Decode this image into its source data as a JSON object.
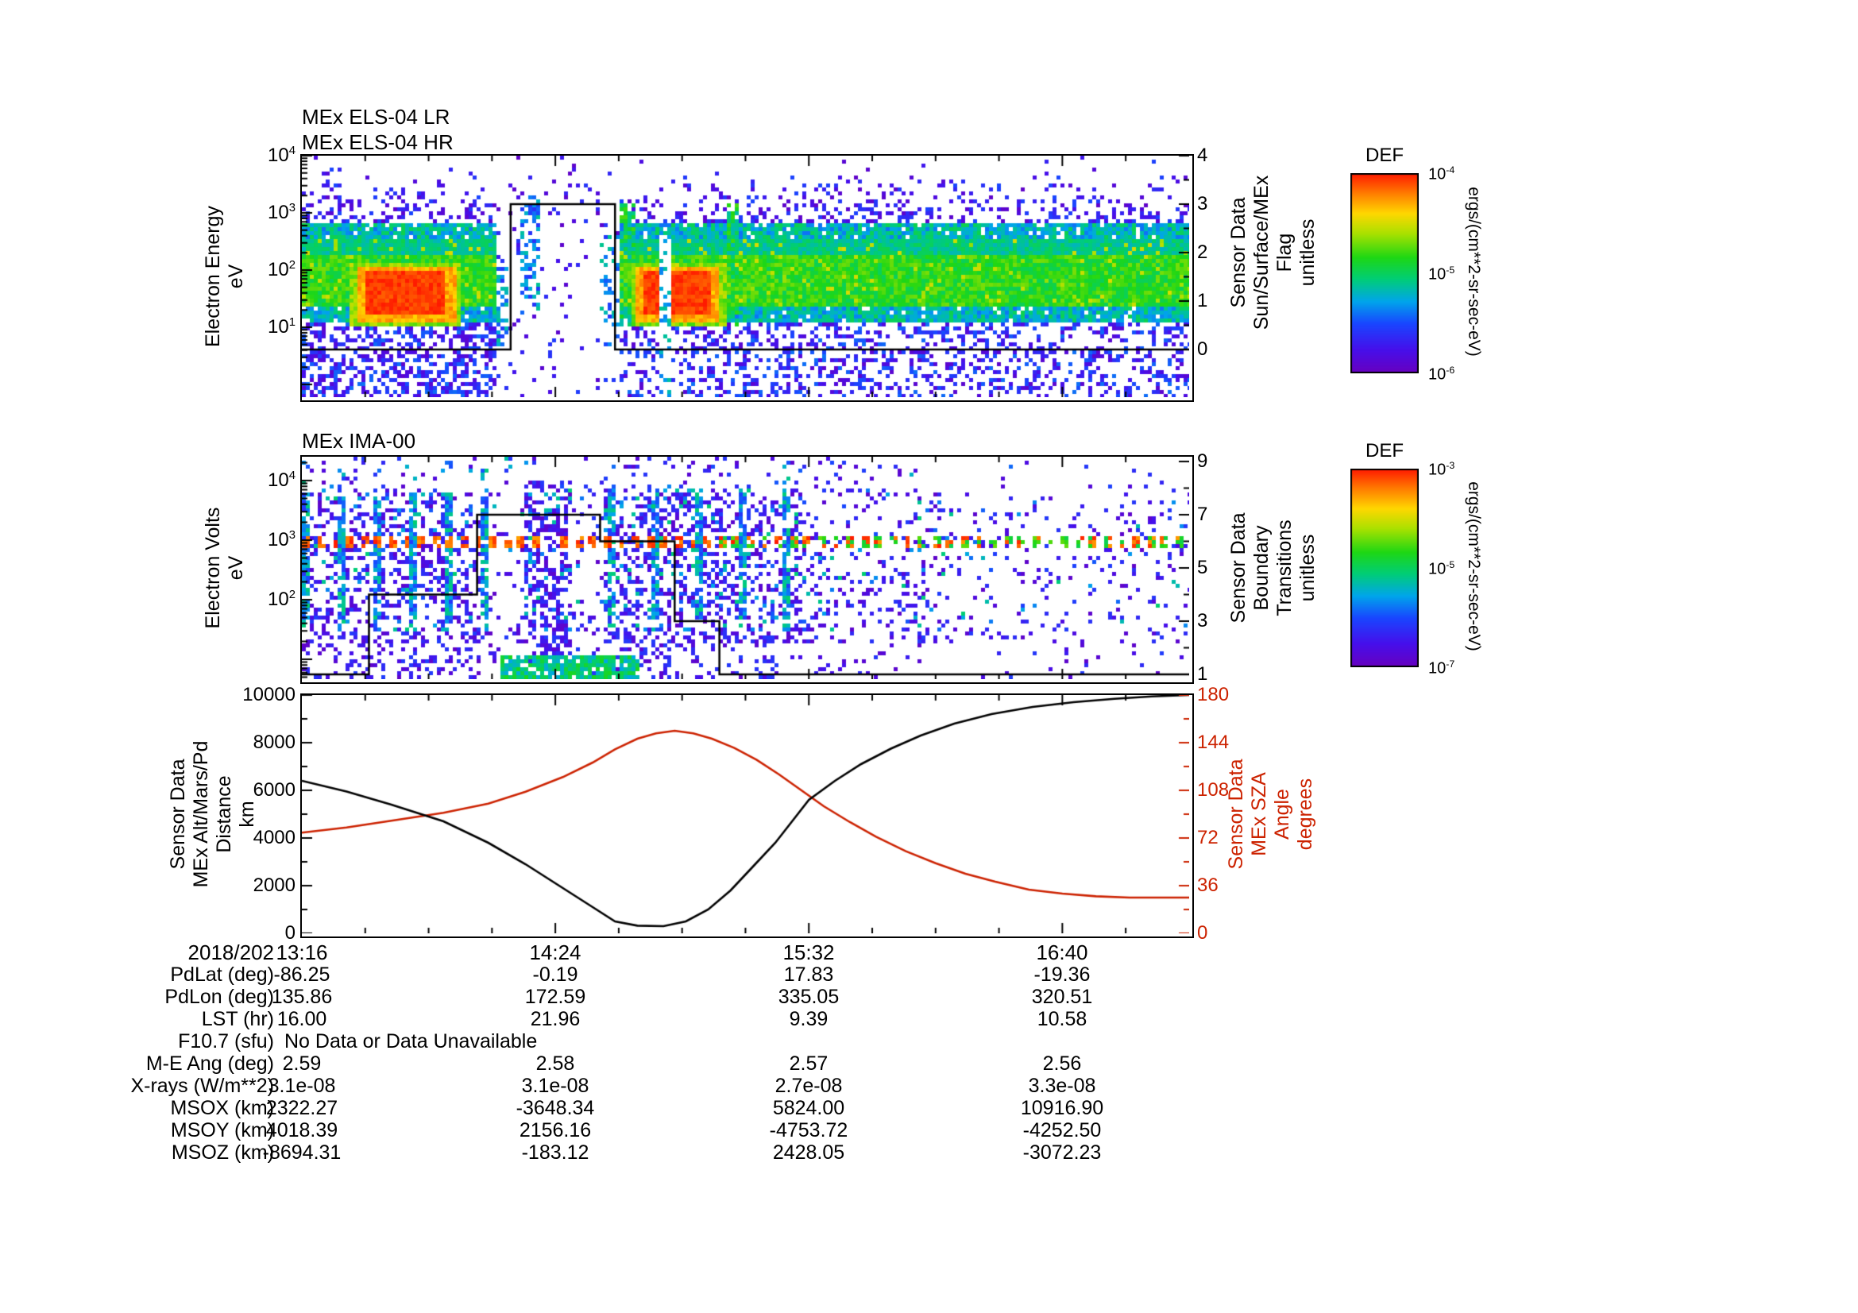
{
  "colors": {
    "red": "#cc2200",
    "black": "#000000"
  },
  "panels": {
    "els": {
      "title_lr": "MEx ELS-04 LR",
      "title_hr": "MEx ELS-04 HR",
      "ylabel_lines": [
        "Electron Energy",
        "eV"
      ],
      "ytick_exponents": [
        4,
        3,
        2,
        1
      ],
      "right_label_lines": [
        "Sensor Data",
        "Sun/Surface/MEx",
        "Flag",
        "unitless"
      ],
      "right_ticks": [
        "4",
        "3",
        "2",
        "1",
        "0"
      ]
    },
    "ima": {
      "title": "MEx IMA-00",
      "ylabel_lines": [
        "Electron Volts",
        "eV"
      ],
      "ytick_exponents": [
        4,
        3,
        2
      ],
      "right_label_lines": [
        "Sensor Data",
        "Boundary",
        "Transitions",
        "unitless"
      ],
      "right_ticks": [
        "9",
        "7",
        "5",
        "3",
        "1"
      ]
    },
    "bottom": {
      "ylabel_lines": [
        "Sensor Data",
        "MEx Alt/Mars/Pd",
        "Distance",
        "km"
      ],
      "yticks": [
        "10000",
        "8000",
        "6000",
        "4000",
        "2000",
        "0"
      ],
      "right_label_lines": [
        "Sensor Data",
        "MEx SZA",
        "Angle",
        "degrees"
      ],
      "right_ticks": [
        "180",
        "144",
        "108",
        "72",
        "36",
        "0"
      ]
    }
  },
  "colorbars": [
    {
      "title": "DEF",
      "unit": "ergs/(cm**2-sr-sec-eV)",
      "tick_exponents": [
        -4,
        -5,
        -6
      ]
    },
    {
      "title": "DEF",
      "unit": "ergs/(cm**2-sr-sec-eV)",
      "tick_exponents": [
        -3,
        -5,
        -7
      ]
    }
  ],
  "xaxis": {
    "date": "2018/202",
    "tick_labels": [
      "13:16",
      "14:24",
      "15:32",
      "16:40"
    ]
  },
  "table": {
    "rows": [
      {
        "label": "PdLat (deg)",
        "values": [
          "-86.25",
          "-0.19",
          "17.83",
          "-19.36"
        ]
      },
      {
        "label": "PdLon (deg)",
        "values": [
          "135.86",
          "172.59",
          "335.05",
          "320.51"
        ]
      },
      {
        "label": "LST (hr)",
        "values": [
          "16.00",
          "21.96",
          "9.39",
          "10.58"
        ]
      },
      {
        "label": "F10.7 (sfu)",
        "values": [],
        "note": "No Data or Data Unavailable"
      },
      {
        "label": "M-E Ang (deg)",
        "values": [
          "2.59",
          "2.58",
          "2.57",
          "2.56"
        ]
      },
      {
        "label": "X-rays (W/m**2)",
        "values": [
          "3.1e-08",
          "3.1e-08",
          "2.7e-08",
          "3.3e-08"
        ]
      },
      {
        "label": "MSOX (km)",
        "values": [
          "2322.27",
          "-3648.34",
          "5824.00",
          "10916.90"
        ]
      },
      {
        "label": "MSOY (km)",
        "values": [
          "4018.39",
          "2156.16",
          "-4753.72",
          "-4252.50"
        ]
      },
      {
        "label": "MSOZ (km)",
        "values": [
          "-8694.31",
          "-183.12",
          "2428.05",
          "-3072.23"
        ]
      }
    ]
  },
  "chart_data": [
    {
      "type": "heatmap",
      "title": "MEx ELS-04 LR / MEx ELS-04 HR electron energy spectrogram",
      "ylabel": "Electron Energy (eV)",
      "yscale": "log",
      "ylim": [
        6,
        10000
      ],
      "x_start": "13:16",
      "x_ticks": [
        "13:16",
        "14:24",
        "15:32",
        "16:40"
      ],
      "x_minutes_span": 238,
      "colorbar": {
        "title": "DEF",
        "units": "ergs/(cm**2-sr-sec-eV)",
        "min": "1e-6",
        "max": "1e-4"
      },
      "features": {
        "main_band_logE": [
          1.1,
          2.8
        ],
        "core_band_logE": [
          1.35,
          2.55
        ],
        "red_blob_tfrac": [
          [
            0.053,
            0.178
          ],
          [
            0.368,
            0.475
          ]
        ],
        "red_blob_logE": [
          1.05,
          2.15
        ],
        "data_gap_tfrac": [
          0.215,
          0.357
        ],
        "streak_tfrac": [
          [
            0.245,
            0.268
          ],
          [
            0.357,
            0.372
          ],
          [
            0.475,
            0.49
          ]
        ]
      }
    },
    {
      "type": "heatmap",
      "title": "MEx IMA-00 ion spectrogram",
      "ylabel": "Electron Volts (eV)",
      "yscale": "log",
      "ylim": [
        5,
        25000
      ],
      "x_minutes_span": 238,
      "colorbar": {
        "title": "DEF",
        "units": "ergs/(cm**2-sr-sec-eV)",
        "min": "1e-7",
        "max": "1e-3"
      },
      "features": {
        "dash_line_logV": 2.95,
        "dense_left_tfrac": [
          0,
          0.21
        ],
        "sparse_gap_tfrac": [
          0.21,
          0.34
        ],
        "dense_mid_tfrac": [
          0.34,
          0.56
        ],
        "bottom_streak_tfrac": [
          0.22,
          0.38
        ],
        "bottom_streak_logV": [
          0.7,
          1.05
        ]
      }
    },
    {
      "type": "line",
      "x_unit": "minutes from 13:16",
      "x_span": 238,
      "left_axis": {
        "label": "Sensor Data MEx Alt/Mars/Pd Distance (km)",
        "lim": [
          0,
          10000
        ]
      },
      "right_axis": {
        "label": "Sensor Data MEx SZA Angle (degrees)",
        "lim": [
          0,
          180
        ]
      },
      "series": [
        {
          "name": "altitude_km",
          "axis": "left",
          "color": "#000000",
          "points": [
            [
              0,
              6400
            ],
            [
              12,
              5950
            ],
            [
              24,
              5400
            ],
            [
              38,
              4700
            ],
            [
              50,
              3800
            ],
            [
              60,
              2900
            ],
            [
              70,
              1900
            ],
            [
              78,
              1100
            ],
            [
              84,
              500
            ],
            [
              90,
              320
            ],
            [
              97,
              300
            ],
            [
              103,
              500
            ],
            [
              109,
              1000
            ],
            [
              115,
              1800
            ],
            [
              121,
              2800
            ],
            [
              127,
              3800
            ],
            [
              132,
              4800
            ],
            [
              136,
              5600
            ],
            [
              143,
              6400
            ],
            [
              150,
              7100
            ],
            [
              158,
              7750
            ],
            [
              166,
              8300
            ],
            [
              175,
              8800
            ],
            [
              185,
              9200
            ],
            [
              196,
              9500
            ],
            [
              207,
              9700
            ],
            [
              218,
              9840
            ],
            [
              228,
              9940
            ],
            [
              238,
              10000
            ]
          ]
        },
        {
          "name": "sza_deg",
          "axis": "right",
          "color": "#cc2200",
          "points": [
            [
              0,
              76
            ],
            [
              12,
              80
            ],
            [
              24,
              85
            ],
            [
              38,
              91
            ],
            [
              50,
              98
            ],
            [
              60,
              107
            ],
            [
              70,
              118
            ],
            [
              78,
              129
            ],
            [
              84,
              139
            ],
            [
              90,
              147
            ],
            [
              95,
              151
            ],
            [
              100,
              153
            ],
            [
              105,
              151
            ],
            [
              110,
              147
            ],
            [
              116,
              140
            ],
            [
              122,
              131
            ],
            [
              128,
              120
            ],
            [
              134,
              108
            ],
            [
              140,
              96
            ],
            [
              147,
              84
            ],
            [
              154,
              73
            ],
            [
              162,
              62
            ],
            [
              170,
              53
            ],
            [
              178,
              45
            ],
            [
              186,
              39
            ],
            [
              195,
              33
            ],
            [
              204,
              30
            ],
            [
              213,
              28
            ],
            [
              222,
              27
            ],
            [
              230,
              27
            ],
            [
              238,
              27
            ]
          ]
        }
      ]
    },
    {
      "type": "line",
      "name": "sun_surface_mex_flag",
      "ylim": [
        0,
        4
      ],
      "points": [
        [
          0,
          0
        ],
        [
          56,
          0
        ],
        [
          56,
          3
        ],
        [
          84,
          3
        ],
        [
          84,
          0
        ],
        [
          238,
          0
        ]
      ]
    },
    {
      "type": "line",
      "name": "boundary_transitions",
      "ylim": [
        1,
        9
      ],
      "points": [
        [
          0,
          1
        ],
        [
          18,
          1
        ],
        [
          18,
          4
        ],
        [
          47,
          4
        ],
        [
          47,
          7
        ],
        [
          80,
          7
        ],
        [
          80,
          6
        ],
        [
          100,
          6
        ],
        [
          100,
          3
        ],
        [
          112,
          3
        ],
        [
          112,
          1
        ],
        [
          238,
          1
        ]
      ]
    }
  ]
}
